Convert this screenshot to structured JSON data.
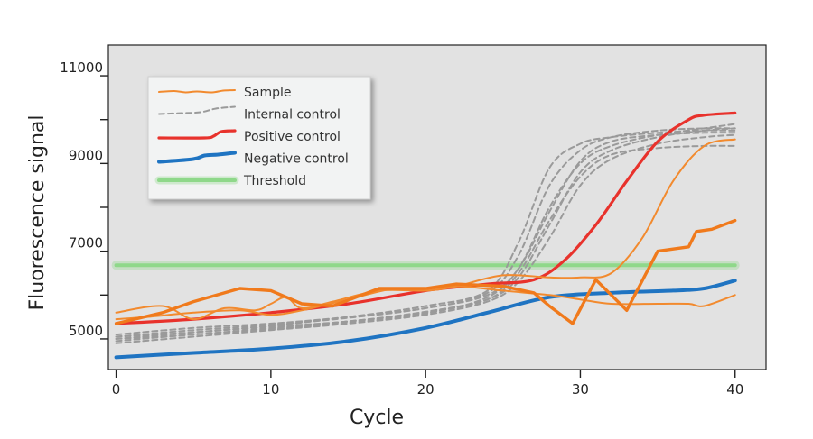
{
  "chart_data": {
    "type": "line",
    "xlabel": "Cycle",
    "ylabel": "Fluorescence signal",
    "xlim": [
      -0.5,
      42
    ],
    "ylim": [
      4300,
      11700
    ],
    "x_ticks": [
      0,
      10,
      20,
      30,
      40
    ],
    "x_tick_labels": [
      "0",
      "10",
      "20",
      "30",
      "40"
    ],
    "y_ticks": [
      5000,
      6000,
      7000,
      8000,
      9000,
      10000,
      11000
    ],
    "y_tick_labels": [
      "5000",
      "",
      "7000",
      "",
      "9000",
      "",
      "11000"
    ],
    "background_color": "#e2e2e2",
    "legend_position": "top-left",
    "legend": [
      {
        "label": "Sample",
        "style": "sample"
      },
      {
        "label": "Internal control",
        "style": "internal"
      },
      {
        "label": "Positive control",
        "style": "positive"
      },
      {
        "label": "Negative control",
        "style": "negative"
      },
      {
        "label": "Threshold",
        "style": "threshold"
      }
    ],
    "colors": {
      "sample": "#f28a2e",
      "sample_bold": "#f07a1c",
      "internal": "#9a9a9a",
      "positive": "#e8322c",
      "negative": "#1f74c2",
      "threshold": "#8fd88a"
    },
    "series": [
      {
        "style": "threshold",
        "x": [
          0,
          40
        ],
        "y": [
          6680,
          6680
        ]
      },
      {
        "style": "internal",
        "x": [
          0,
          5,
          10,
          15,
          20,
          24,
          26,
          28,
          30,
          32,
          35,
          38,
          40
        ],
        "y": [
          5050,
          5150,
          5280,
          5400,
          5620,
          5900,
          6400,
          7600,
          8800,
          9300,
          9600,
          9750,
          9800
        ]
      },
      {
        "style": "internal",
        "x": [
          0,
          5,
          10,
          15,
          20,
          24,
          26,
          28,
          30,
          32,
          35,
          38,
          40
        ],
        "y": [
          4950,
          5100,
          5220,
          5380,
          5580,
          5950,
          6600,
          8000,
          9000,
          9400,
          9650,
          9800,
          9900
        ]
      },
      {
        "style": "internal",
        "x": [
          0,
          5,
          10,
          15,
          20,
          24,
          26,
          28,
          30,
          32,
          35,
          38,
          40
        ],
        "y": [
          5050,
          5200,
          5320,
          5480,
          5700,
          6050,
          6900,
          8500,
          9300,
          9600,
          9750,
          9800,
          9800
        ]
      },
      {
        "style": "internal",
        "x": [
          0,
          5,
          10,
          15,
          20,
          24,
          26,
          28,
          30,
          32,
          35,
          38,
          40
        ],
        "y": [
          5000,
          5150,
          5300,
          5500,
          5750,
          6100,
          7200,
          8900,
          9450,
          9600,
          9700,
          9750,
          9750
        ]
      },
      {
        "style": "internal",
        "x": [
          0,
          5,
          10,
          15,
          20,
          24,
          26,
          28,
          30,
          32,
          35,
          38,
          40
        ],
        "y": [
          4900,
          5050,
          5200,
          5350,
          5550,
          5850,
          6300,
          7300,
          8500,
          9100,
          9450,
          9600,
          9650
        ]
      },
      {
        "style": "internal",
        "x": [
          0,
          5,
          10,
          15,
          20,
          24,
          26,
          28,
          30,
          32,
          35,
          38,
          40
        ],
        "y": [
          5000,
          5100,
          5250,
          5400,
          5600,
          5900,
          6500,
          7700,
          8700,
          9200,
          9350,
          9400,
          9400
        ]
      },
      {
        "style": "internal",
        "x": [
          0,
          5,
          10,
          15,
          20,
          24,
          26,
          28,
          30,
          32,
          35,
          38,
          40
        ],
        "y": [
          5100,
          5250,
          5350,
          5500,
          5700,
          6000,
          6600,
          7900,
          9050,
          9500,
          9650,
          9700,
          9700
        ]
      },
      {
        "style": "negative",
        "x": [
          0,
          5,
          10,
          15,
          20,
          24,
          28,
          32,
          36,
          38,
          40
        ],
        "y": [
          4580,
          4680,
          4780,
          4950,
          5250,
          5600,
          5950,
          6050,
          6100,
          6150,
          6330
        ]
      },
      {
        "style": "positive",
        "x": [
          0,
          5,
          10,
          15,
          20,
          24,
          27,
          29,
          31,
          33,
          35,
          37,
          38,
          40
        ],
        "y": [
          5350,
          5450,
          5600,
          5800,
          6100,
          6250,
          6350,
          6800,
          7600,
          8600,
          9500,
          10000,
          10100,
          10150
        ]
      },
      {
        "style": "sample",
        "x": [
          0,
          3,
          5,
          7,
          9,
          10,
          11,
          12,
          14,
          17,
          20,
          22,
          25,
          28,
          30,
          32,
          34,
          36,
          38,
          40
        ],
        "y": [
          5600,
          5750,
          5450,
          5700,
          5650,
          5800,
          5950,
          5700,
          5850,
          6100,
          6100,
          6200,
          6450,
          6400,
          6400,
          6500,
          7300,
          8600,
          9400,
          9550
        ]
      },
      {
        "style": "sample",
        "x": [
          0,
          2,
          5,
          8,
          10,
          12,
          15,
          18,
          20,
          22,
          25,
          28,
          30,
          32,
          35,
          37,
          38,
          40
        ],
        "y": [
          5450,
          5500,
          5600,
          5650,
          5550,
          5650,
          5900,
          6150,
          6100,
          6200,
          6100,
          6000,
          5900,
          5800,
          5800,
          5800,
          5750,
          6000
        ]
      },
      {
        "style": "sample_bold",
        "x": [
          0,
          3,
          5,
          8,
          10,
          12,
          14,
          17,
          20,
          22,
          25,
          27,
          28,
          29.5,
          31,
          33,
          35,
          37,
          37.5,
          38.5,
          40
        ],
        "y": [
          5350,
          5600,
          5850,
          6150,
          6100,
          5800,
          5750,
          6150,
          6150,
          6250,
          6200,
          6050,
          5750,
          5350,
          6350,
          5650,
          7000,
          7100,
          7450,
          7500,
          7700
        ]
      }
    ]
  }
}
